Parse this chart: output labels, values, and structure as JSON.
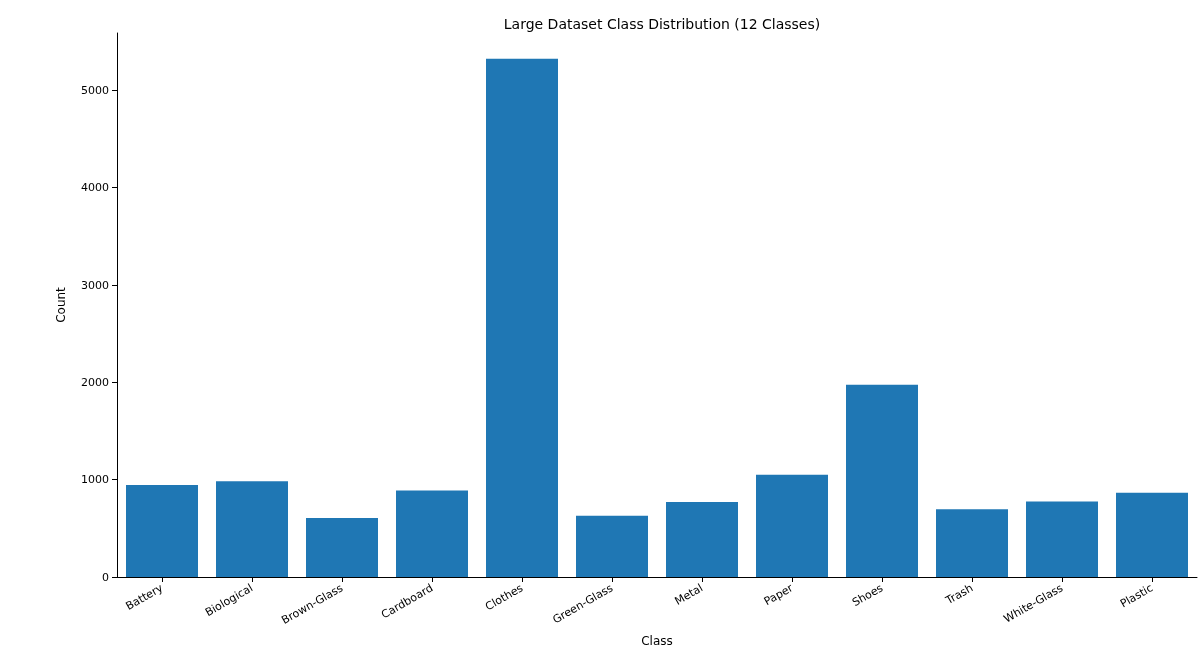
{
  "chart_data": {
    "type": "bar",
    "title": "Large Dataset Class Distribution (12 Classes)",
    "xlabel": "Class",
    "ylabel": "Count",
    "categories": [
      "Battery",
      "Biological",
      "Brown-Glass",
      "Cardboard",
      "Clothes",
      "Green-Glass",
      "Metal",
      "Paper",
      "Shoes",
      "Trash",
      "White-Glass",
      "Plastic"
    ],
    "values": [
      945,
      985,
      605,
      890,
      5325,
      630,
      770,
      1050,
      1975,
      695,
      775,
      865
    ],
    "color": "#1f77b4",
    "ylim": [
      0,
      5590
    ],
    "yticks": [
      0,
      1000,
      2000,
      3000,
      4000,
      5000
    ],
    "grid": false
  }
}
